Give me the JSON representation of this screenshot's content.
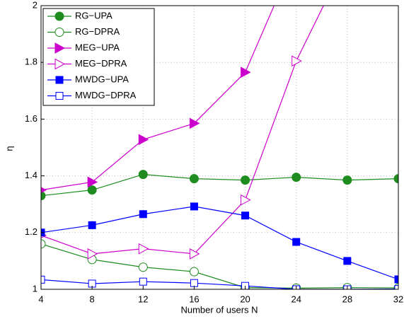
{
  "chart_data": {
    "type": "line",
    "xlabel": "Number of users N",
    "ylabel": "η",
    "x": [
      4,
      8,
      12,
      16,
      20,
      24,
      28,
      32
    ],
    "xlim": [
      4,
      32
    ],
    "xticks": [
      4,
      8,
      12,
      16,
      20,
      24,
      28,
      32
    ],
    "ylim": [
      1,
      2
    ],
    "yticks": [
      1,
      1.2,
      1.4,
      1.6,
      1.8,
      2
    ],
    "grid": true,
    "legend": "upper left",
    "series": [
      {
        "name": "RG−UPA",
        "color": "#1e8c1e",
        "marker": "circle",
        "filled": true,
        "values": [
          1.33,
          1.35,
          1.405,
          1.39,
          1.385,
          1.395,
          1.385,
          1.39
        ]
      },
      {
        "name": "RG−DPRA",
        "color": "#1e8c1e",
        "marker": "circle",
        "filled": false,
        "values": [
          1.16,
          1.105,
          1.078,
          1.062,
          1.006,
          1.004,
          1.006,
          1.005
        ]
      },
      {
        "name": "MEG−UPA",
        "color": "#cc00cc",
        "marker": "triangle",
        "filled": true,
        "values": [
          1.35,
          1.378,
          1.528,
          1.585,
          1.765,
          2.18,
          null,
          null
        ]
      },
      {
        "name": "MEG−DPRA",
        "color": "#cc00cc",
        "marker": "triangle",
        "filled": false,
        "values": [
          1.19,
          1.125,
          1.143,
          1.125,
          1.315,
          1.805,
          2.17,
          null
        ]
      },
      {
        "name": "MWDG−UPA",
        "color": "#0000ff",
        "marker": "square",
        "filled": true,
        "values": [
          1.2,
          1.226,
          1.265,
          1.292,
          1.26,
          1.167,
          1.1,
          1.035
        ]
      },
      {
        "name": "MWDG−DPRA",
        "color": "#0000ff",
        "marker": "square",
        "filled": false,
        "values": [
          1.034,
          1.02,
          1.027,
          1.022,
          1.012,
          1.0,
          1.0,
          1.001
        ]
      }
    ]
  }
}
